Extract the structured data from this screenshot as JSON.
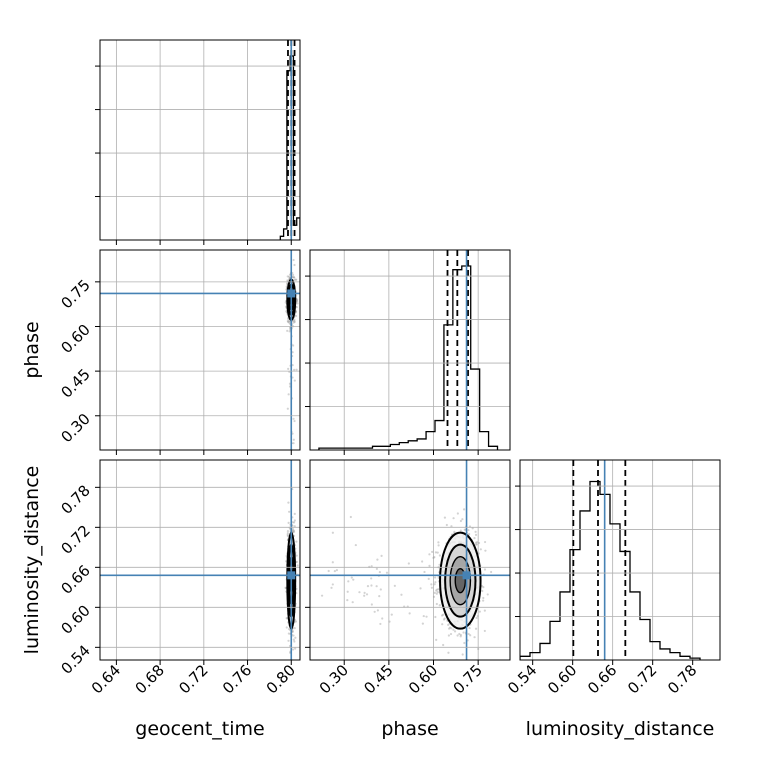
{
  "chart_data": {
    "type": "corner",
    "parameters": [
      "geocent_time",
      "phase",
      "luminosity_distance"
    ],
    "axis_labels": {
      "geocent_time": "geocent_time",
      "phase": "phase",
      "luminosity_distance": "luminosity_distance"
    },
    "ranges": {
      "geocent_time": [
        0.625,
        0.808
      ],
      "phase": [
        0.185,
        0.857
      ],
      "luminosity_distance": [
        0.521,
        0.821
      ]
    },
    "ticks": {
      "geocent_time": [
        "0.64",
        "0.68",
        "0.72",
        "0.76",
        "0.80"
      ],
      "phase": [
        "0.30",
        "0.45",
        "0.60",
        "0.75"
      ],
      "luminosity_distance": [
        "0.54",
        "0.60",
        "0.66",
        "0.72",
        "0.78"
      ]
    },
    "truths": {
      "geocent_time": 0.8,
      "phase": 0.711,
      "luminosity_distance": 0.648
    },
    "quantiles": {
      "geocent_time": [
        0.797,
        0.8,
        0.803
      ],
      "phase": [
        0.647,
        0.68,
        0.716
      ],
      "luminosity_distance": [
        0.601,
        0.638,
        0.679
      ]
    },
    "histograms": {
      "geocent_time": {
        "bins": [
          0.79,
          0.793,
          0.796,
          0.799,
          0.802,
          0.805,
          0.808
        ],
        "counts": [
          0.02,
          0.06,
          0.92,
          1.0,
          0.08,
          0.12
        ]
      },
      "phase": {
        "bins": [
          0.215,
          0.245,
          0.275,
          0.305,
          0.335,
          0.365,
          0.395,
          0.425,
          0.455,
          0.485,
          0.515,
          0.545,
          0.575,
          0.605,
          0.635,
          0.665,
          0.695,
          0.725,
          0.755,
          0.785,
          0.815
        ],
        "counts": [
          0.01,
          0.01,
          0.01,
          0.01,
          0.01,
          0.01,
          0.02,
          0.02,
          0.03,
          0.04,
          0.05,
          0.06,
          0.1,
          0.16,
          0.68,
          0.98,
          1.0,
          0.44,
          0.1,
          0.02
        ]
      },
      "luminosity_distance": {
        "bins": [
          0.521,
          0.536,
          0.551,
          0.566,
          0.581,
          0.596,
          0.611,
          0.626,
          0.641,
          0.656,
          0.671,
          0.686,
          0.701,
          0.716,
          0.731,
          0.746,
          0.761,
          0.776,
          0.791
        ],
        "counts": [
          0.02,
          0.04,
          0.09,
          0.21,
          0.37,
          0.6,
          0.81,
          0.97,
          0.9,
          0.74,
          0.59,
          0.37,
          0.22,
          0.1,
          0.06,
          0.04,
          0.02,
          0.01
        ]
      }
    },
    "grid": true,
    "colors": {
      "truth": "#4682b4",
      "contour": "#000000",
      "samples": "#9e9e9e"
    }
  }
}
